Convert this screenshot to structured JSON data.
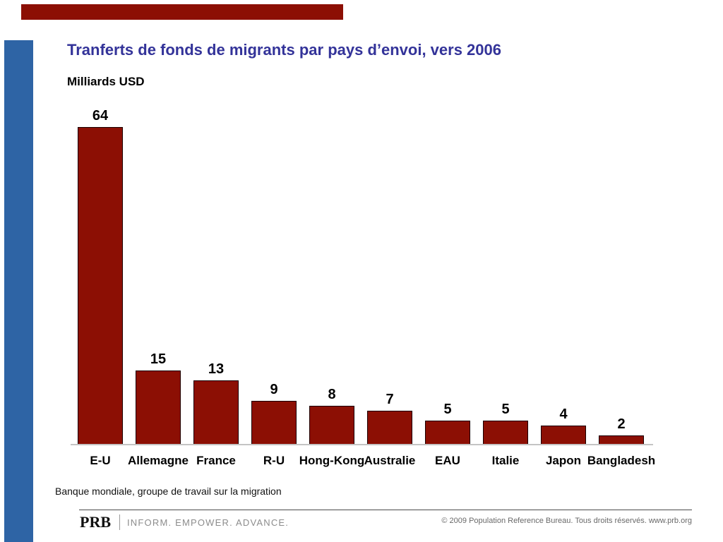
{
  "slide": {
    "title": "Tranferts de fonds de migrants par pays d’envoi, vers 2006",
    "unit_label": "Milliards USD",
    "source_note": "Banque mondiale, groupe de travail sur la migration",
    "colors": {
      "bar": "#8C0F04",
      "top_accent_bar": "#8C0F04",
      "left_accent_stripe": "#2E64A5",
      "title_text": "#333399",
      "axis_line": "#C4C4C4"
    }
  },
  "chart_data": {
    "type": "bar",
    "title": "Tranferts de fonds de migrants par pays d’envoi, vers 2006",
    "ylabel": "Milliards USD",
    "xlabel": "",
    "categories": [
      "E-U",
      "Allemagne",
      "France",
      "R-U",
      "Hong-Kong",
      "Australie",
      "EAU",
      "Italie",
      "Japon",
      "Bangladesh"
    ],
    "values": [
      64,
      15,
      13,
      9,
      8,
      7,
      5,
      5,
      4,
      2
    ],
    "ylim": [
      0,
      70
    ],
    "grid": false,
    "legend": false,
    "data_labels": true,
    "bar_color": "#8C0F04"
  },
  "footer": {
    "brand": "PRB",
    "tagline": "INFORM. EMPOWER. ADVANCE.",
    "copyright": "© 2009 Population Reference Bureau. Tous droits réservés. www.prb.org"
  }
}
